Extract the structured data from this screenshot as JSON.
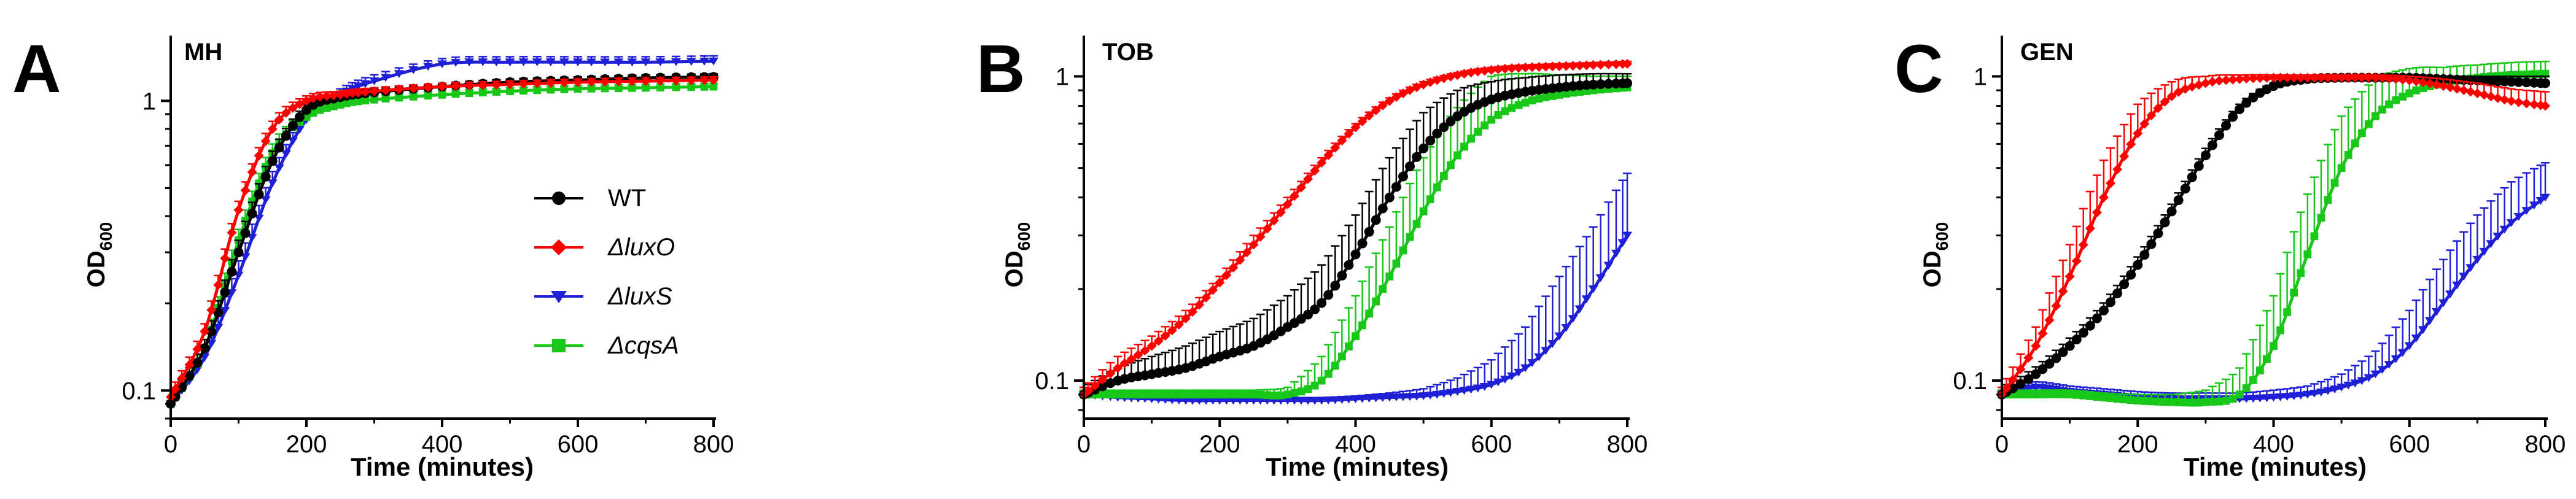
{
  "figure": {
    "x_axis_label": "Time (minutes)",
    "y_axis_label": "OD",
    "y_axis_label_subscript": "600",
    "series_colors": {
      "WT": "#000000",
      "luxO": "#ff0000",
      "luxS": "#1f1fd6",
      "cqsA": "#19c719"
    },
    "legend_entries": [
      {
        "key": "WT",
        "label": "WT",
        "italic": false,
        "marker": "circle"
      },
      {
        "key": "luxO",
        "label": "ΔluxO",
        "italic": true,
        "marker": "diamond"
      },
      {
        "key": "luxS",
        "label": "ΔluxS",
        "italic": true,
        "marker": "triangle-down"
      },
      {
        "key": "cqsA",
        "label": "ΔcqsA",
        "italic": true,
        "marker": "square"
      }
    ]
  },
  "chart_data": [
    {
      "panel_letter": "A",
      "title": "MH",
      "type": "line",
      "y_scale": "log",
      "xlabel": "Time (minutes)",
      "ylabel": "OD600",
      "xlim": [
        0,
        800
      ],
      "ylim": [
        0.08,
        1.6
      ],
      "x_ticks": [
        "0",
        "200",
        "400",
        "600",
        "800"
      ],
      "y_ticks": [
        "0.1",
        "1"
      ],
      "legend": true,
      "series": [
        {
          "name": "WT",
          "x": [
            0,
            50,
            100,
            150,
            200,
            250,
            300,
            400,
            500,
            600,
            700,
            800
          ],
          "y": [
            0.09,
            0.14,
            0.3,
            0.62,
            0.93,
            1.03,
            1.07,
            1.12,
            1.16,
            1.18,
            1.2,
            1.21
          ],
          "err": [
            0.005,
            0.01,
            0.03,
            0.05,
            0.04,
            0.03,
            0.03,
            0.03,
            0.03,
            0.03,
            0.03,
            0.03
          ]
        },
        {
          "name": "ΔluxO",
          "x": [
            0,
            50,
            100,
            150,
            200,
            250,
            300,
            400,
            500,
            600,
            700,
            800
          ],
          "y": [
            0.095,
            0.16,
            0.42,
            0.8,
            1.0,
            1.05,
            1.08,
            1.12,
            1.14,
            1.16,
            1.17,
            1.18
          ],
          "err": [
            0.005,
            0.01,
            0.03,
            0.05,
            0.04,
            0.03,
            0.03,
            0.03,
            0.03,
            0.03,
            0.03,
            0.03
          ]
        },
        {
          "name": "ΔluxS",
          "x": [
            0,
            50,
            100,
            150,
            200,
            250,
            300,
            400,
            500,
            600,
            700,
            800
          ],
          "y": [
            0.09,
            0.13,
            0.25,
            0.52,
            0.86,
            1.05,
            1.17,
            1.34,
            1.36,
            1.36,
            1.36,
            1.37
          ],
          "err": [
            0.005,
            0.01,
            0.03,
            0.05,
            0.05,
            0.05,
            0.06,
            0.06,
            0.06,
            0.06,
            0.06,
            0.06
          ]
        },
        {
          "name": "ΔcqsA",
          "x": [
            0,
            50,
            100,
            150,
            200,
            250,
            300,
            400,
            500,
            600,
            700,
            800
          ],
          "y": [
            0.09,
            0.14,
            0.33,
            0.66,
            0.88,
            0.97,
            1.01,
            1.05,
            1.08,
            1.1,
            1.11,
            1.12
          ],
          "err": [
            0.005,
            0.01,
            0.03,
            0.05,
            0.04,
            0.03,
            0.03,
            0.03,
            0.03,
            0.03,
            0.03,
            0.03
          ]
        }
      ]
    },
    {
      "panel_letter": "B",
      "title": "TOB",
      "type": "line",
      "y_scale": "log",
      "xlabel": "Time (minutes)",
      "ylabel": "OD600",
      "xlim": [
        0,
        800
      ],
      "ylim": [
        0.075,
        1.3
      ],
      "x_ticks": [
        "0",
        "200",
        "400",
        "600",
        "800"
      ],
      "y_ticks": [
        "0.1",
        "1"
      ],
      "legend": false,
      "series": [
        {
          "name": "WT",
          "x": [
            0,
            50,
            100,
            150,
            200,
            250,
            300,
            350,
            400,
            450,
            500,
            550,
            600,
            650,
            700,
            750,
            800
          ],
          "y": [
            0.09,
            0.1,
            0.105,
            0.11,
            0.12,
            0.13,
            0.15,
            0.18,
            0.26,
            0.4,
            0.58,
            0.74,
            0.84,
            0.89,
            0.92,
            0.94,
            0.95
          ],
          "err": [
            0.005,
            0.01,
            0.015,
            0.02,
            0.025,
            0.03,
            0.04,
            0.06,
            0.09,
            0.14,
            0.18,
            0.16,
            0.12,
            0.1,
            0.09,
            0.08,
            0.07
          ]
        },
        {
          "name": "ΔluxO",
          "x": [
            0,
            50,
            100,
            150,
            200,
            250,
            300,
            350,
            400,
            450,
            500,
            550,
            600,
            650,
            700,
            750,
            800
          ],
          "y": [
            0.09,
            0.11,
            0.13,
            0.16,
            0.21,
            0.28,
            0.38,
            0.52,
            0.68,
            0.83,
            0.94,
            1.01,
            1.05,
            1.07,
            1.08,
            1.09,
            1.1
          ],
          "err": [
            0.005,
            0.01,
            0.01,
            0.01,
            0.01,
            0.02,
            0.02,
            0.02,
            0.02,
            0.02,
            0.02,
            0.02,
            0.02,
            0.02,
            0.02,
            0.02,
            0.02
          ]
        },
        {
          "name": "ΔluxS",
          "x": [
            0,
            50,
            100,
            150,
            200,
            250,
            300,
            350,
            400,
            450,
            500,
            550,
            600,
            650,
            700,
            750,
            800
          ],
          "y": [
            0.09,
            0.088,
            0.087,
            0.086,
            0.086,
            0.086,
            0.086,
            0.086,
            0.087,
            0.088,
            0.089,
            0.092,
            0.097,
            0.11,
            0.14,
            0.2,
            0.3
          ],
          "err": [
            0.002,
            0.002,
            0.002,
            0.002,
            0.002,
            0.002,
            0.002,
            0.002,
            0.002,
            0.003,
            0.005,
            0.01,
            0.02,
            0.04,
            0.08,
            0.12,
            0.18
          ]
        },
        {
          "name": "ΔcqsA",
          "x": [
            0,
            50,
            100,
            150,
            200,
            250,
            300,
            350,
            400,
            450,
            500,
            550,
            600,
            650,
            700,
            750,
            800
          ],
          "y": [
            0.09,
            0.09,
            0.09,
            0.09,
            0.09,
            0.09,
            0.09,
            0.1,
            0.14,
            0.22,
            0.36,
            0.55,
            0.72,
            0.82,
            0.87,
            0.9,
            0.92
          ],
          "err": [
            0.003,
            0.003,
            0.003,
            0.003,
            0.003,
            0.003,
            0.005,
            0.02,
            0.05,
            0.1,
            0.18,
            0.24,
            0.28,
            0.2,
            0.14,
            0.1,
            0.08
          ]
        }
      ]
    },
    {
      "panel_letter": "C",
      "title": "GEN",
      "type": "line",
      "y_scale": "log",
      "xlabel": "Time (minutes)",
      "ylabel": "OD600",
      "xlim": [
        0,
        800
      ],
      "ylim": [
        0.075,
        1.3
      ],
      "x_ticks": [
        "0",
        "200",
        "400",
        "600",
        "800"
      ],
      "y_ticks": [
        "0.1",
        "1"
      ],
      "legend": false,
      "series": [
        {
          "name": "WT",
          "x": [
            0,
            50,
            100,
            150,
            200,
            250,
            300,
            350,
            400,
            450,
            500,
            550,
            600,
            650,
            700,
            750,
            800
          ],
          "y": [
            0.09,
            0.105,
            0.13,
            0.17,
            0.24,
            0.36,
            0.55,
            0.78,
            0.93,
            0.98,
            0.99,
            0.99,
            0.99,
            0.98,
            0.97,
            0.96,
            0.95
          ],
          "err": [
            0.005,
            0.006,
            0.008,
            0.01,
            0.015,
            0.02,
            0.03,
            0.03,
            0.02,
            0.02,
            0.02,
            0.02,
            0.02,
            0.02,
            0.03,
            0.04,
            0.05
          ]
        },
        {
          "name": "ΔluxO",
          "x": [
            0,
            50,
            100,
            150,
            200,
            250,
            300,
            350,
            400,
            450,
            500,
            550,
            600,
            650,
            700,
            750,
            800
          ],
          "y": [
            0.09,
            0.13,
            0.22,
            0.4,
            0.65,
            0.86,
            0.95,
            0.98,
            0.99,
            0.99,
            0.99,
            0.99,
            0.97,
            0.93,
            0.88,
            0.83,
            0.8
          ],
          "err": [
            0.005,
            0.02,
            0.06,
            0.13,
            0.16,
            0.1,
            0.05,
            0.03,
            0.02,
            0.02,
            0.02,
            0.02,
            0.03,
            0.05,
            0.07,
            0.08,
            0.09
          ]
        },
        {
          "name": "ΔluxS",
          "x": [
            0,
            50,
            100,
            150,
            200,
            250,
            300,
            350,
            400,
            450,
            500,
            550,
            600,
            650,
            700,
            750,
            800
          ],
          "y": [
            0.09,
            0.095,
            0.092,
            0.09,
            0.088,
            0.087,
            0.087,
            0.087,
            0.088,
            0.09,
            0.095,
            0.105,
            0.13,
            0.18,
            0.25,
            0.33,
            0.4
          ],
          "err": [
            0.003,
            0.004,
            0.004,
            0.004,
            0.004,
            0.004,
            0.004,
            0.004,
            0.005,
            0.006,
            0.01,
            0.02,
            0.04,
            0.07,
            0.1,
            0.12,
            0.12
          ]
        },
        {
          "name": "ΔcqsA",
          "x": [
            0,
            50,
            100,
            150,
            200,
            250,
            300,
            350,
            400,
            450,
            500,
            550,
            600,
            650,
            700,
            750,
            800
          ],
          "y": [
            0.09,
            0.09,
            0.09,
            0.088,
            0.086,
            0.085,
            0.085,
            0.09,
            0.13,
            0.26,
            0.5,
            0.74,
            0.88,
            0.95,
            0.99,
            1.01,
            1.02
          ],
          "err": [
            0.003,
            0.003,
            0.003,
            0.003,
            0.004,
            0.005,
            0.008,
            0.02,
            0.06,
            0.15,
            0.24,
            0.24,
            0.18,
            0.12,
            0.1,
            0.1,
            0.1
          ]
        }
      ]
    }
  ]
}
